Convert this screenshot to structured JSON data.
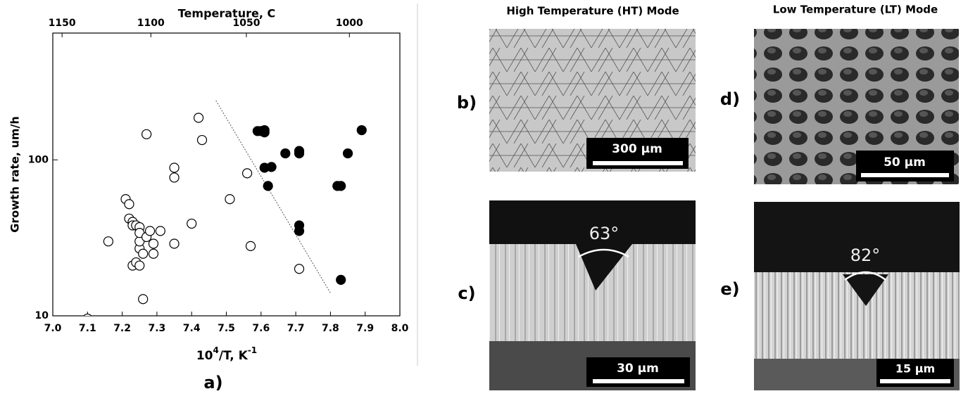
{
  "chart_data": {
    "type": "scatter",
    "log_y": true,
    "ylabel": "Growth rate, um/h",
    "xlabel_parts": [
      "10",
      "4",
      "/T, K",
      "-1"
    ],
    "top_xlabel": "Temperature, C",
    "panel_label": "a)",
    "xlim": [
      7.0,
      8.0
    ],
    "xticks": [
      {
        "value": 7.0,
        "label": "7.0"
      },
      {
        "value": 7.1,
        "label": "7.1"
      },
      {
        "value": 7.2,
        "label": "7.2"
      },
      {
        "value": 7.3,
        "label": "7.3"
      },
      {
        "value": 7.4,
        "label": "7.4"
      },
      {
        "value": 7.5,
        "label": "7.5"
      },
      {
        "value": 7.6,
        "label": "7.6"
      },
      {
        "value": 7.7,
        "label": "7.7"
      },
      {
        "value": 7.8,
        "label": "7.8"
      },
      {
        "value": 7.9,
        "label": "7.9"
      },
      {
        "value": 8.0,
        "label": "8.0"
      }
    ],
    "ylim": [
      10,
      650
    ],
    "yticks": [
      10,
      100
    ],
    "top_xticks": [
      1150,
      1100,
      1050,
      1000
    ],
    "series": [
      {
        "marker": "open",
        "color": "#000000",
        "x": [
          7.1,
          7.16,
          7.21,
          7.22,
          7.22,
          7.23,
          7.23,
          7.24,
          7.25,
          7.27,
          7.35,
          7.35,
          7.42,
          7.43,
          7.4,
          7.35,
          7.51,
          7.56,
          7.57,
          7.71,
          7.26,
          7.23,
          7.24,
          7.25,
          7.25,
          7.25,
          7.25,
          7.26,
          7.27,
          7.28,
          7.29,
          7.29,
          7.31
        ],
        "y": [
          9.6,
          30,
          56,
          52,
          42,
          40,
          38,
          38,
          37,
          146,
          89,
          77,
          186,
          134,
          39,
          29,
          56,
          82,
          28,
          20,
          12.8,
          21,
          22,
          21,
          27,
          30,
          34,
          25,
          32,
          35,
          25,
          29,
          35
        ]
      },
      {
        "marker": "filled",
        "color": "#000000",
        "x": [
          7.59,
          7.6,
          7.61,
          7.61,
          7.61,
          7.63,
          7.62,
          7.67,
          7.71,
          7.71,
          7.85,
          7.89,
          7.82,
          7.83,
          7.71,
          7.71,
          7.83
        ],
        "y": [
          153,
          153,
          150,
          155,
          89,
          90,
          68,
          110,
          114,
          110,
          110,
          155,
          68,
          68,
          38,
          35,
          17
        ]
      }
    ],
    "trend_line": {
      "x": [
        7.47,
        7.8
      ],
      "y": [
        240,
        14
      ]
    }
  },
  "images": {
    "ht_title": "High Temperature  (HT) Mode",
    "lt_title": "Low Temperature (LT) Mode",
    "panels": [
      {
        "label": "b)",
        "scale_bar": "300 µm"
      },
      {
        "label": "c)",
        "scale_bar": "30 µm",
        "angle": "63°"
      },
      {
        "label": "d)",
        "scale_bar": "50 µm"
      },
      {
        "label": "e)",
        "scale_bar": "15 µm",
        "angle": "82°"
      }
    ]
  }
}
